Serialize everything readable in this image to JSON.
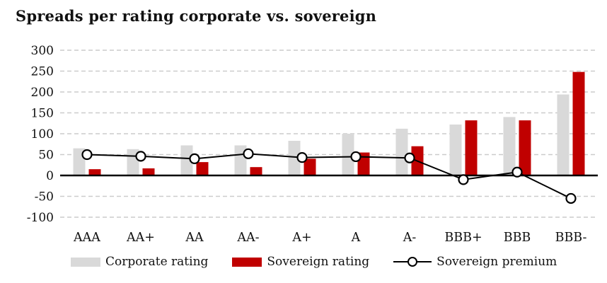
{
  "title": "Spreads per rating corporate vs. sovereign",
  "colors": {
    "corporate_bar": "#d9d9d9",
    "sovereign_bar": "#c00000",
    "premium_line": "#000000",
    "marker_fill": "#ffffff",
    "gridline": "#cccccc",
    "axis_line": "#000000",
    "text": "#111111"
  },
  "legend": {
    "corporate_label": "Corporate rating",
    "sovereign_label": "Sovereign rating",
    "premium_label": "Sovereign premium"
  },
  "chart_data": {
    "type": "bar",
    "subtype": "grouped bars with overlaid line+circle markers",
    "title": "Spreads per rating corporate vs. sovereign",
    "categories": [
      "AAA",
      "AA+",
      "AA",
      "AA-",
      "A+",
      "A",
      "A-",
      "BBB+",
      "BBB",
      "BBB-"
    ],
    "series": [
      {
        "name": "Corporate rating",
        "type": "bar",
        "color": "#d9d9d9",
        "values": [
          65,
          63,
          72,
          72,
          83,
          100,
          112,
          122,
          140,
          194
        ]
      },
      {
        "name": "Sovereign rating",
        "type": "bar",
        "color": "#c00000",
        "values": [
          15,
          17,
          32,
          20,
          40,
          55,
          70,
          132,
          132,
          248
        ]
      },
      {
        "name": "Sovereign premium",
        "type": "line",
        "marker": "circle",
        "color": "#000000",
        "values": [
          50,
          46,
          40,
          52,
          43,
          45,
          42,
          -10,
          8,
          -55
        ]
      }
    ],
    "xlabel": "",
    "ylabel": "",
    "y_axis": {
      "min": -100,
      "max": 300,
      "step": 50,
      "ticks": [
        300,
        250,
        200,
        150,
        100,
        50,
        0,
        -50,
        -100
      ]
    },
    "grid": "horizontal dashed, zero line solid black",
    "legend_position": "bottom"
  }
}
